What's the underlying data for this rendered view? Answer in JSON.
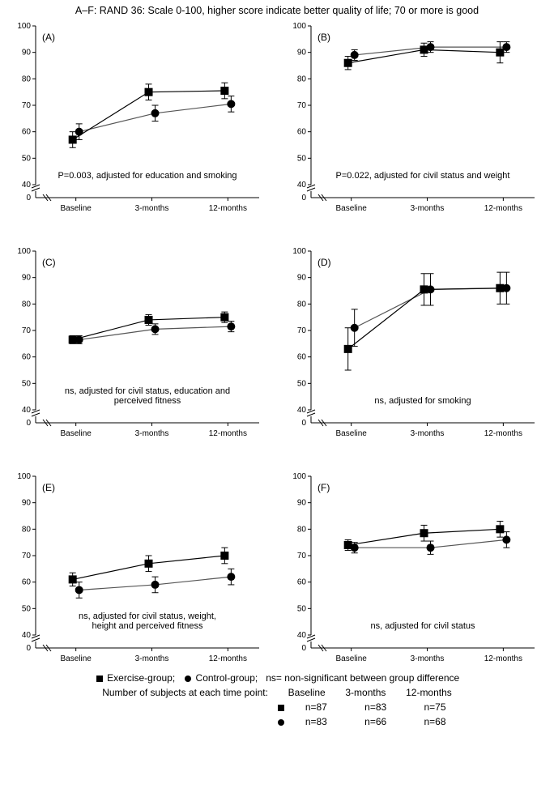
{
  "title": "A–F: RAND 36: Scale 0-100, higher score indicate better quality of life;  70 or more is good",
  "colors": {
    "axis": "#000000",
    "exercise_line": "#000000",
    "control_line": "#555555",
    "marker_fill": "#000000",
    "bg": "#ffffff"
  },
  "axis": {
    "ymin": 40,
    "ymax": 100,
    "ytick_step": 10,
    "categories": [
      "Baseline",
      "3-months",
      "12-months"
    ],
    "axis_fontsize": 10
  },
  "marker": {
    "exercise_shape": "square",
    "control_shape": "circle",
    "size": 5,
    "line_width": 1.2,
    "err_cap": 4
  },
  "panels": [
    {
      "label": "(A)",
      "annotation": "P=0.003, adjusted for education and smoking",
      "exercise": {
        "y": [
          57,
          75,
          75.5
        ],
        "err_lo": [
          3,
          3,
          3
        ],
        "err_hi": [
          3,
          3,
          3
        ]
      },
      "control": {
        "y": [
          60,
          67,
          70.5
        ],
        "err_lo": [
          3,
          3,
          3
        ],
        "err_hi": [
          3,
          3,
          3
        ]
      }
    },
    {
      "label": "(B)",
      "annotation": "P=0.022, adjusted for civil status and weight",
      "exercise": {
        "y": [
          86,
          91,
          90
        ],
        "err_lo": [
          2.5,
          2.5,
          4
        ],
        "err_hi": [
          2.5,
          2.5,
          4
        ]
      },
      "control": {
        "y": [
          89,
          92,
          92
        ],
        "err_lo": [
          2,
          2,
          2
        ],
        "err_hi": [
          2,
          2,
          2
        ]
      }
    },
    {
      "label": "(C)",
      "annotation": "ns, adjusted for civil status, education and\nperceived fitness",
      "exercise": {
        "y": [
          66.5,
          74,
          75
        ],
        "err_lo": [
          1.5,
          2,
          2
        ],
        "err_hi": [
          1.5,
          2,
          2
        ]
      },
      "control": {
        "y": [
          66.5,
          70.5,
          71.5
        ],
        "err_lo": [
          1.5,
          2,
          2
        ],
        "err_hi": [
          1.5,
          2,
          2
        ]
      }
    },
    {
      "label": "(D)",
      "annotation": "ns, adjusted for smoking",
      "exercise": {
        "y": [
          63,
          85.5,
          86
        ],
        "err_lo": [
          8,
          6,
          6
        ],
        "err_hi": [
          8,
          6,
          6
        ]
      },
      "control": {
        "y": [
          71,
          85.5,
          86
        ],
        "err_lo": [
          7,
          6,
          6
        ],
        "err_hi": [
          7,
          6,
          6
        ]
      }
    },
    {
      "label": "(E)",
      "annotation": "ns, adjusted for civil status, weight,\nheight and perceived fitness",
      "exercise": {
        "y": [
          61,
          67,
          70
        ],
        "err_lo": [
          2.5,
          3,
          3
        ],
        "err_hi": [
          2.5,
          3,
          3
        ]
      },
      "control": {
        "y": [
          57,
          59,
          62
        ],
        "err_lo": [
          3,
          3,
          3
        ],
        "err_hi": [
          3,
          3,
          3
        ]
      }
    },
    {
      "label": "(F)",
      "annotation": "ns, adjusted for civil status",
      "exercise": {
        "y": [
          74,
          78.5,
          80
        ],
        "err_lo": [
          2,
          3,
          3
        ],
        "err_hi": [
          2,
          3,
          3
        ]
      },
      "control": {
        "y": [
          73,
          73,
          76
        ],
        "err_lo": [
          2,
          2.5,
          3
        ],
        "err_hi": [
          2,
          2.5,
          3
        ]
      }
    }
  ],
  "legend": {
    "line1": "  Exercise-group;     Control-group;   ns= non-significant between group difference",
    "line2": "Number of subjects at each time  point:",
    "header": [
      "Baseline",
      "3-months",
      "12-months"
    ],
    "exercise_n": [
      "n=87",
      "n=83",
      "n=75"
    ],
    "control_n": [
      "n=83",
      "n=66",
      "n=68"
    ]
  }
}
